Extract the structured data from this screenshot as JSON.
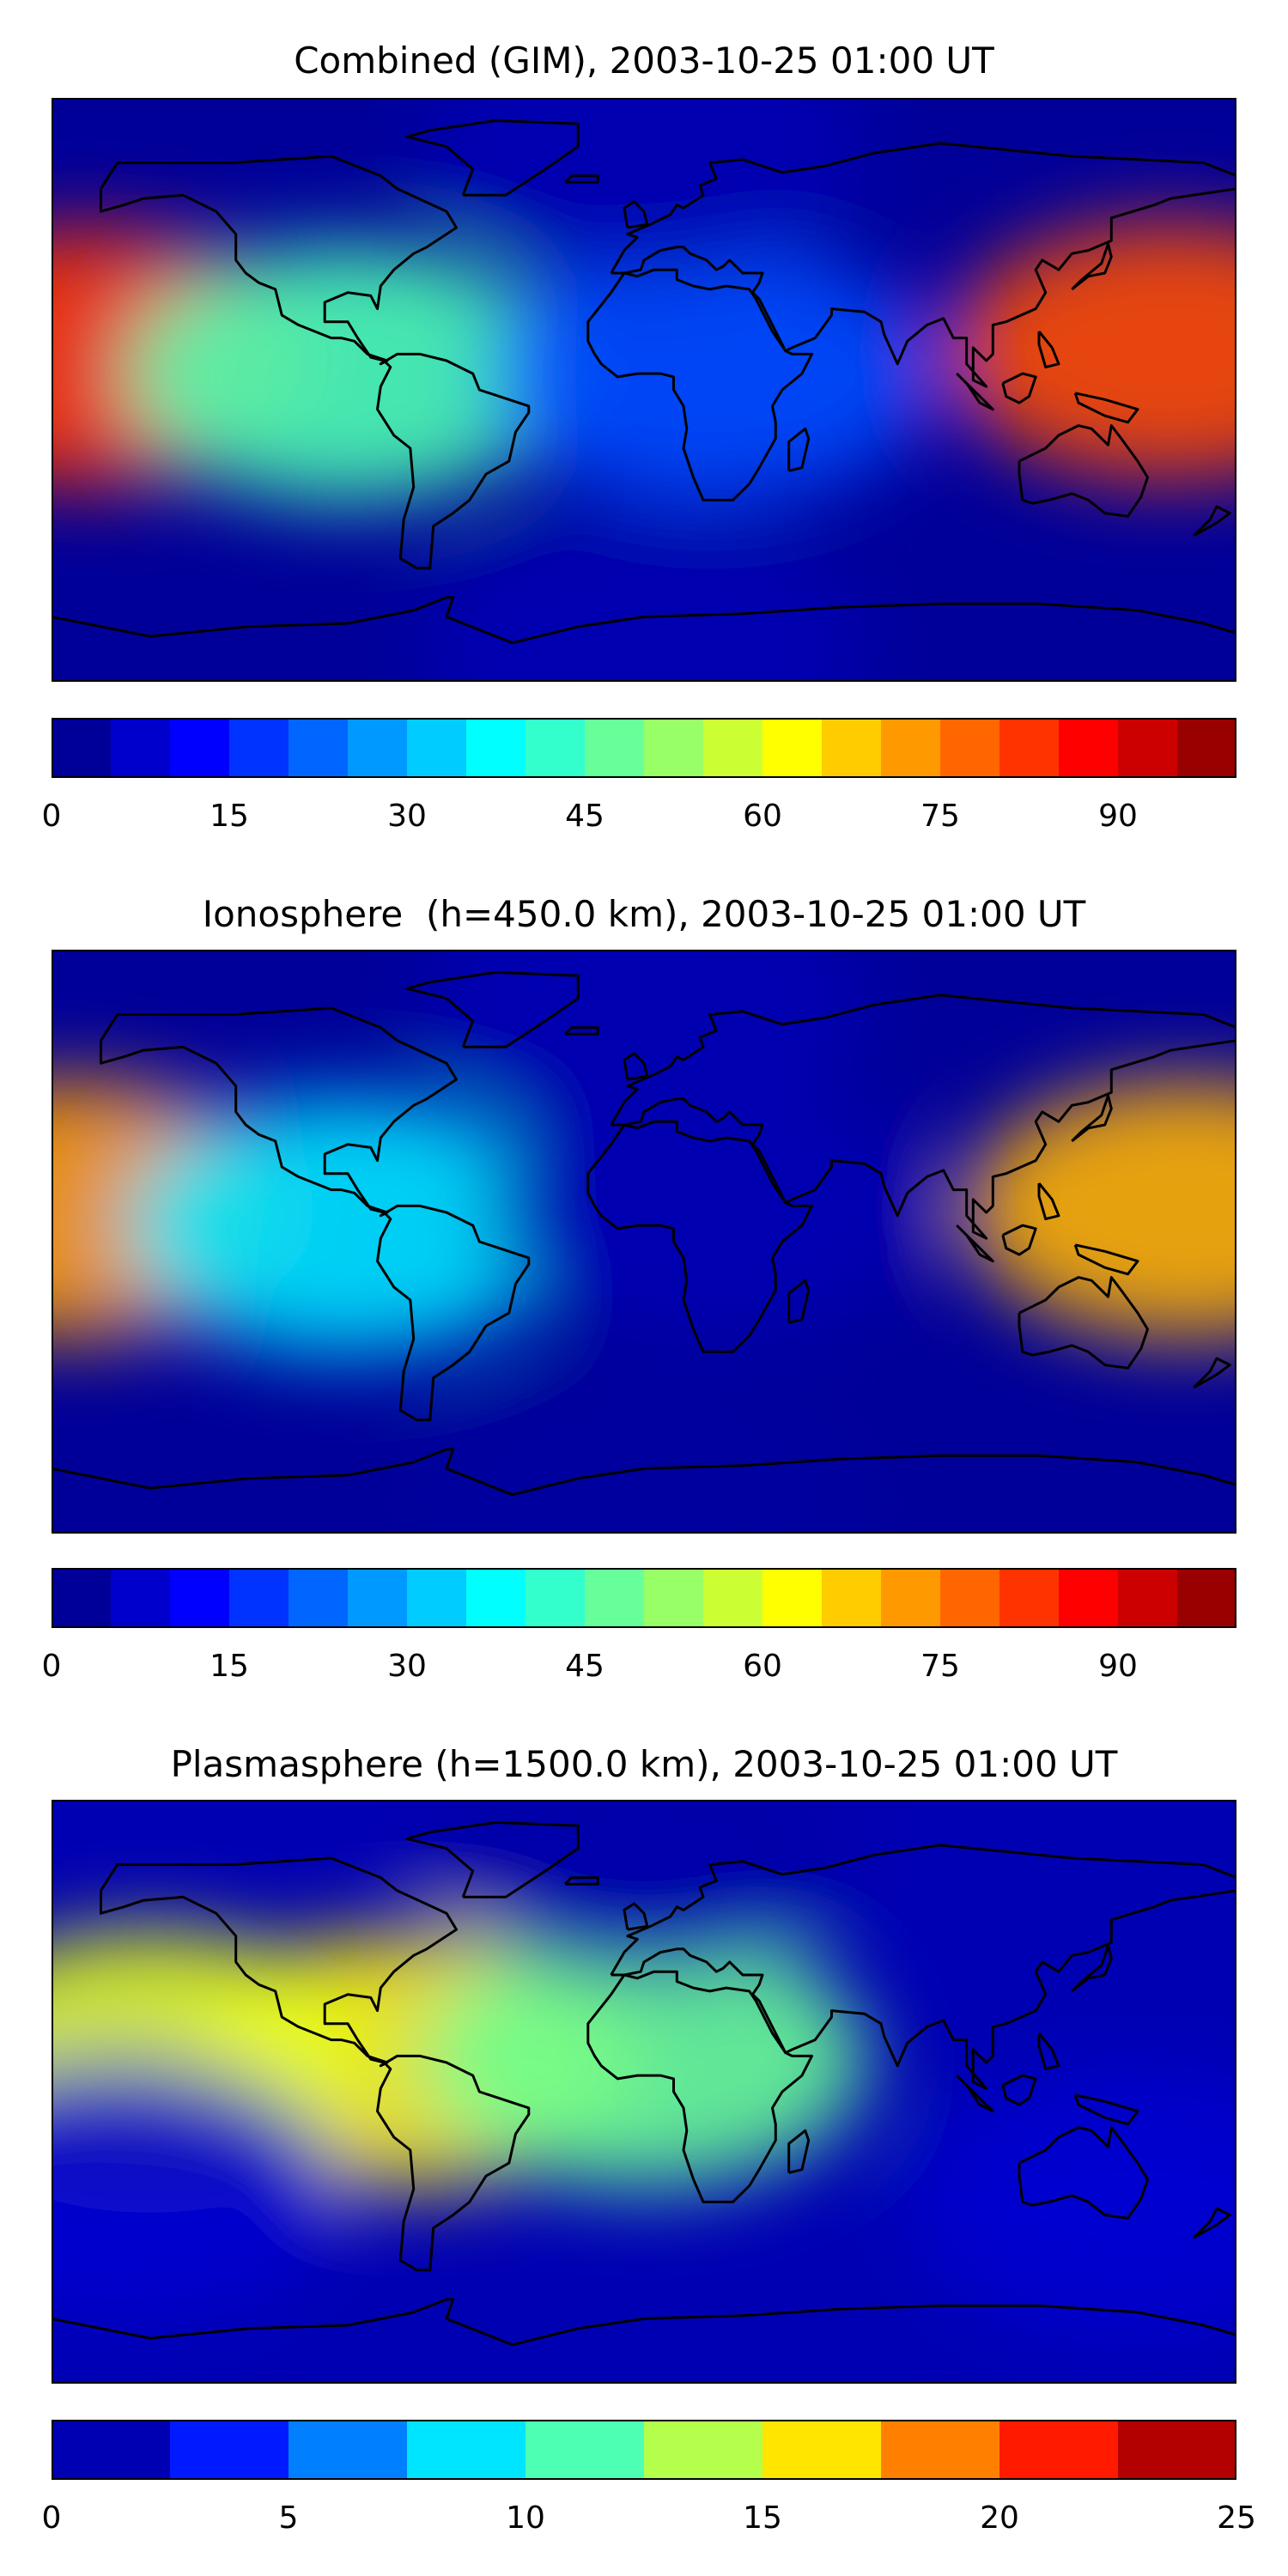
{
  "chart_data": [
    {
      "type": "heatmap",
      "title": "Combined (GIM), 2003-10-25 01:00 UT",
      "map": "world contour map (plate carrée) with coastlines",
      "colormap": "jet",
      "levels": [
        0,
        5,
        10,
        15,
        20,
        25,
        30,
        35,
        40,
        45,
        50,
        55,
        60,
        65,
        70,
        75,
        80,
        85,
        90,
        95,
        100
      ],
      "colorbar_ticks": [
        "0",
        "15",
        "30",
        "45",
        "60",
        "75",
        "90"
      ],
      "features": [
        {
          "lon": -170,
          "lat": 10,
          "value": 82
        },
        {
          "lon": 160,
          "lat": 12,
          "value": 80
        },
        {
          "lon": -90,
          "lat": 5,
          "value": 45
        },
        {
          "lon": 20,
          "lat": 5,
          "value": 20
        },
        {
          "lon": 0,
          "lat": 75,
          "value": 5
        },
        {
          "lon": 0,
          "lat": -80,
          "value": 5
        }
      ]
    },
    {
      "type": "heatmap",
      "title": "Ionosphere  (h=450.0 km), 2003-10-25 01:00 UT",
      "map": "world contour map (plate carrée) with coastlines",
      "colormap": "jet",
      "levels": [
        0,
        5,
        10,
        15,
        20,
        25,
        30,
        35,
        40,
        45,
        50,
        55,
        60,
        65,
        70,
        75,
        80,
        85,
        90,
        95,
        100
      ],
      "colorbar_ticks": [
        "0",
        "15",
        "30",
        "45",
        "60",
        "75",
        "90"
      ],
      "features": [
        {
          "lon": -175,
          "lat": 10,
          "value": 72
        },
        {
          "lon": 165,
          "lat": 10,
          "value": 70
        },
        {
          "lon": -90,
          "lat": 5,
          "value": 35
        },
        {
          "lon": 20,
          "lat": 10,
          "value": 5
        },
        {
          "lon": 0,
          "lat": 75,
          "value": 5
        },
        {
          "lon": 0,
          "lat": -80,
          "value": 3
        }
      ]
    },
    {
      "type": "heatmap",
      "title": "Plasmasphere (h=1500.0 km), 2003-10-25 01:00 UT",
      "map": "world contour map (plate carrée) with coastlines",
      "colormap": "jet",
      "levels": [
        0,
        2.5,
        5,
        7.5,
        10,
        12.5,
        15,
        17.5,
        20,
        22.5,
        25
      ],
      "colorbar_ticks": [
        "0",
        "5",
        "10",
        "15",
        "20",
        "25"
      ],
      "features": [
        {
          "lon": -70,
          "lat": 10,
          "value": 16
        },
        {
          "lon": -150,
          "lat": 10,
          "value": 15
        },
        {
          "lon": 0,
          "lat": 10,
          "value": 12
        },
        {
          "lon": -160,
          "lat": -30,
          "value": 2
        },
        {
          "lon": 150,
          "lat": -35,
          "value": 2
        },
        {
          "lon": 0,
          "lat": 75,
          "value": 1
        }
      ]
    }
  ]
}
